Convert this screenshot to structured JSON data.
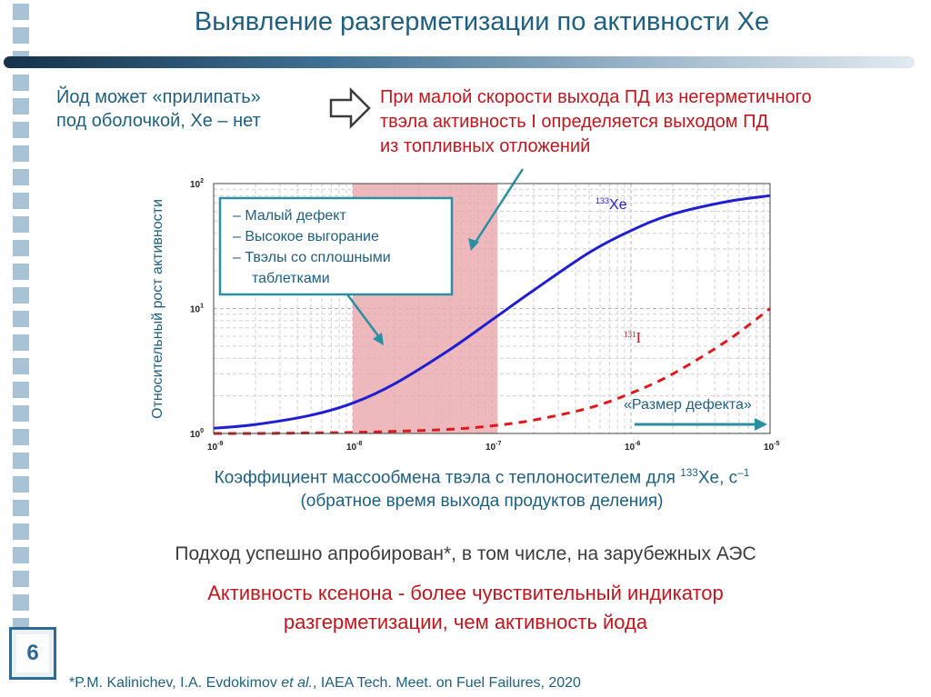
{
  "header": {
    "title": "Выявление разгерметизации по активности Xe"
  },
  "notes": {
    "iodine_line1": "Йод может «прилипать»",
    "iodine_line2": "под оболочкой, Xe – нет",
    "conclusion_line1": "При малой скорости выхода ПД из негерметичного",
    "conclusion_line2": "твэла активность I определяется выходом ПД",
    "conclusion_line3": "из топливных отложений"
  },
  "chart_data": {
    "type": "line",
    "x_scale": "log",
    "y_scale": "log",
    "xlim": [
      1e-09,
      1e-05
    ],
    "ylim": [
      1,
      100
    ],
    "x_tick_labels": [
      {
        "base": "10",
        "exp": "-9",
        "value": 1e-09
      },
      {
        "base": "10",
        "exp": "-8",
        "value": 1e-08
      },
      {
        "base": "10",
        "exp": "-7",
        "value": 1e-07
      },
      {
        "base": "10",
        "exp": "-6",
        "value": 1e-06
      },
      {
        "base": "10",
        "exp": "-5",
        "value": 1e-05
      }
    ],
    "y_tick_labels": [
      {
        "base": "10",
        "exp": "0",
        "value": 1
      },
      {
        "base": "10",
        "exp": "1",
        "value": 10
      },
      {
        "base": "10",
        "exp": "2",
        "value": 100
      }
    ],
    "ylabel": "Относительный рост активности",
    "xlabel_part1": "Коэффициент массообмена твэла с теплоносителем для ",
    "xlabel_sup": "133",
    "xlabel_part2": "Xe, с",
    "xlabel_exp": "–1",
    "xlabel_line2": "(обратное время выхода продуктов деления)",
    "grid": true,
    "highlight_band": {
      "x": [
        1e-08,
        1.1e-07
      ],
      "color": "#e8a7ad"
    },
    "series": [
      {
        "name_sup": "133",
        "name": "Xe",
        "color": "#1f1fd0",
        "style": "solid",
        "x": [
          1e-09,
          2e-09,
          5e-09,
          1e-08,
          2e-08,
          5e-08,
          1e-07,
          2e-07,
          5e-07,
          1e-06,
          2e-06,
          5e-06,
          1e-05
        ],
        "y": [
          1.1,
          1.18,
          1.4,
          1.75,
          2.5,
          4.7,
          8.1,
          14,
          28,
          42,
          57,
          72,
          80
        ]
      },
      {
        "name_sup": "131",
        "name": "I",
        "color": "#e0191f",
        "style": "dashed",
        "x": [
          1e-09,
          2e-09,
          5e-09,
          1e-08,
          2e-08,
          5e-08,
          1e-07,
          2e-07,
          5e-07,
          1e-06,
          2e-06,
          5e-06,
          1e-05
        ],
        "y": [
          1.0,
          1.0,
          1.01,
          1.02,
          1.04,
          1.08,
          1.15,
          1.28,
          1.6,
          2.1,
          3.0,
          5.6,
          10
        ]
      }
    ],
    "callout": {
      "items": [
        "– Малый дефект",
        "– Высокое выгорание",
        "– Твэлы со сплошными",
        "таблетками"
      ]
    },
    "defect_label": "«Размер дефекта»"
  },
  "colors": {
    "title": "#1f5f7f",
    "accent_red": "#c0171f",
    "teal": "#2a8fa0"
  },
  "body": {
    "approach": "Подход успешно апробирован*, в том числе, на зарубежных АЭС",
    "finding_line1": "Активность ксенона - более чувствительный индикатор",
    "finding_line2": "разгерметизации, чем активность йода"
  },
  "footer": {
    "page_number": "6",
    "footnote_part1": "*P.M. Kalinichev, I.A. Evdokimov ",
    "footnote_italic": "et al.",
    "footnote_part2": ", IAEA Tech. Meet. on Fuel Failures, 2020"
  }
}
